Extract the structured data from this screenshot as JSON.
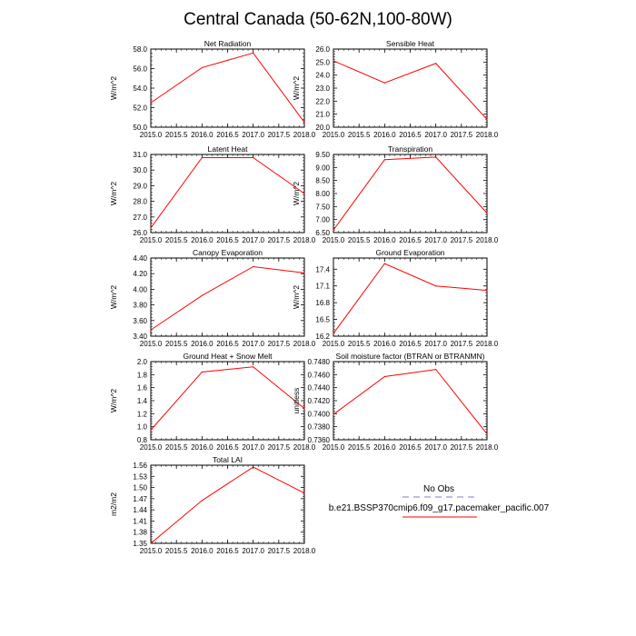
{
  "figure": {
    "title": "Central Canada (50-62N,100-80W)"
  },
  "colors": {
    "series": "#ff0000",
    "obs": "#a8a8d8",
    "axis": "#000000"
  },
  "legend": {
    "entries": [
      {
        "label": "No Obs",
        "style": "dashed",
        "color": "#a8a8d8"
      },
      {
        "label": "b.e21.BSSP370cmip6.f09_g17.pacemaker_pacific.007",
        "style": "solid",
        "color": "#ff0000"
      }
    ]
  },
  "chart_data": [
    {
      "type": "line",
      "title": "Net Radiation",
      "ylabel": "W/m^2",
      "x": [
        2015,
        2016,
        2017,
        2018
      ],
      "values": [
        52.5,
        56.1,
        57.6,
        50.5
      ],
      "xlim": [
        2015,
        2018
      ],
      "ylim": [
        50,
        58
      ],
      "xticks": [
        2015,
        2015.5,
        2016,
        2016.5,
        2017,
        2017.5,
        2018
      ],
      "xtick_labels": [
        "2015.0",
        "2015.5",
        "2016.0",
        "2016.5",
        "2017.0",
        "2017.5",
        "2018.0"
      ],
      "yticks": [
        50,
        52,
        54,
        56,
        58
      ],
      "ytick_labels": [
        "50.0",
        "52.0",
        "54.0",
        "56.0",
        "58.0"
      ]
    },
    {
      "type": "line",
      "title": "Sensible Heat",
      "ylabel": "W/m^2",
      "x": [
        2015,
        2016,
        2017,
        2018
      ],
      "values": [
        25.1,
        23.4,
        24.9,
        20.6
      ],
      "xlim": [
        2015,
        2018
      ],
      "ylim": [
        20,
        26
      ],
      "xticks": [
        2015,
        2015.5,
        2016,
        2016.5,
        2017,
        2017.5,
        2018
      ],
      "xtick_labels": [
        "2015.0",
        "2015.5",
        "2016.0",
        "2016.5",
        "2017.0",
        "2017.5",
        "2018.0"
      ],
      "yticks": [
        20,
        21,
        22,
        23,
        24,
        25,
        26
      ],
      "ytick_labels": [
        "20.0",
        "21.0",
        "22.0",
        "23.0",
        "24.0",
        "25.0",
        "26.0"
      ]
    },
    {
      "type": "line",
      "title": "Latent Heat",
      "ylabel": "W/m^2",
      "x": [
        2015,
        2016,
        2017,
        2018
      ],
      "values": [
        26.3,
        30.8,
        30.8,
        28.5
      ],
      "xlim": [
        2015,
        2018
      ],
      "ylim": [
        26,
        31
      ],
      "xticks": [
        2015,
        2015.5,
        2016,
        2016.5,
        2017,
        2017.5,
        2018
      ],
      "xtick_labels": [
        "2015.0",
        "2015.5",
        "2016.0",
        "2016.5",
        "2017.0",
        "2017.5",
        "2018.0"
      ],
      "yticks": [
        26,
        27,
        28,
        29,
        30,
        31
      ],
      "ytick_labels": [
        "26.0",
        "27.0",
        "28.0",
        "29.0",
        "30.0",
        "31.0"
      ]
    },
    {
      "type": "line",
      "title": "Transpiration",
      "ylabel": "W/m^2",
      "x": [
        2015,
        2016,
        2017,
        2018
      ],
      "values": [
        6.6,
        9.3,
        9.4,
        7.25
      ],
      "xlim": [
        2015,
        2018
      ],
      "ylim": [
        6.5,
        9.5
      ],
      "xticks": [
        2015,
        2015.5,
        2016,
        2016.5,
        2017,
        2017.5,
        2018
      ],
      "xtick_labels": [
        "2015.0",
        "2015.5",
        "2016.0",
        "2016.5",
        "2017.0",
        "2017.5",
        "2018.0"
      ],
      "yticks": [
        6.5,
        7.0,
        7.5,
        8.0,
        8.5,
        9.0,
        9.5
      ],
      "ytick_labels": [
        "6.50",
        "7.00",
        "7.50",
        "8.00",
        "8.50",
        "9.00",
        "9.50"
      ]
    },
    {
      "type": "line",
      "title": "Canopy Evaporation",
      "ylabel": "W/m^2",
      "x": [
        2015,
        2016,
        2017,
        2018
      ],
      "values": [
        3.48,
        3.92,
        4.29,
        4.21
      ],
      "xlim": [
        2015,
        2018
      ],
      "ylim": [
        3.4,
        4.4
      ],
      "xticks": [
        2015,
        2015.5,
        2016,
        2016.5,
        2017,
        2017.5,
        2018
      ],
      "xtick_labels": [
        "2015.0",
        "2015.5",
        "2016.0",
        "2016.5",
        "2017.0",
        "2017.5",
        "2018.0"
      ],
      "yticks": [
        3.4,
        3.6,
        3.8,
        4.0,
        4.2,
        4.4
      ],
      "ytick_labels": [
        "3.40",
        "3.60",
        "3.80",
        "4.00",
        "4.20",
        "4.40"
      ]
    },
    {
      "type": "line",
      "title": "Ground Evaporation",
      "ylabel": "W/m^2",
      "x": [
        2015,
        2016,
        2017,
        2018
      ],
      "values": [
        16.25,
        17.5,
        17.1,
        17.02
      ],
      "xlim": [
        2015,
        2018
      ],
      "ylim": [
        16.2,
        17.6
      ],
      "xticks": [
        2015,
        2015.5,
        2016,
        2016.5,
        2017,
        2017.5,
        2018
      ],
      "xtick_labels": [
        "2015.0",
        "2015.5",
        "2016.0",
        "2016.5",
        "2017.0",
        "2017.5",
        "2018.0"
      ],
      "yticks": [
        16.2,
        16.5,
        16.8,
        17.1,
        17.4
      ],
      "ytick_labels": [
        "16.2",
        "16.5",
        "16.8",
        "17.1",
        "17.4"
      ]
    },
    {
      "type": "line",
      "title": "Ground Heat + Snow Melt",
      "ylabel": "W/m^2",
      "x": [
        2015,
        2016,
        2017,
        2018
      ],
      "values": [
        0.95,
        1.84,
        1.92,
        1.28
      ],
      "xlim": [
        2015,
        2018
      ],
      "ylim": [
        0.8,
        2.0
      ],
      "xticks": [
        2015,
        2015.5,
        2016,
        2016.5,
        2017,
        2017.5,
        2018
      ],
      "xtick_labels": [
        "2015.0",
        "2015.5",
        "2016.0",
        "2016.5",
        "2017.0",
        "2017.5",
        "2018.0"
      ],
      "yticks": [
        0.8,
        1.0,
        1.2,
        1.4,
        1.6,
        1.8,
        2.0
      ],
      "ytick_labels": [
        "0.8",
        "1.0",
        "1.2",
        "1.4",
        "1.6",
        "1.8",
        "2.0"
      ]
    },
    {
      "type": "line",
      "title": "Soil moisture factor (BTRAN or BTRANMN)",
      "ylabel": "unitless",
      "x": [
        2015,
        2016,
        2017,
        2018
      ],
      "values": [
        0.7399,
        0.7457,
        0.7468,
        0.7369
      ],
      "xlim": [
        2015,
        2018
      ],
      "ylim": [
        0.736,
        0.748
      ],
      "xticks": [
        2015,
        2015.5,
        2016,
        2016.5,
        2017,
        2017.5,
        2018
      ],
      "xtick_labels": [
        "2015.0",
        "2015.5",
        "2016.0",
        "2016.5",
        "2017.0",
        "2017.5",
        "2018.0"
      ],
      "yticks": [
        0.736,
        0.738,
        0.74,
        0.742,
        0.744,
        0.746,
        0.748
      ],
      "ytick_labels": [
        "0.7360",
        "0.7380",
        "0.7400",
        "0.7420",
        "0.7440",
        "0.7460",
        "0.7480"
      ]
    },
    {
      "type": "line",
      "title": "Total LAI",
      "ylabel": "m2/m2",
      "x": [
        2015,
        2016,
        2017,
        2018
      ],
      "values": [
        1.35,
        1.465,
        1.555,
        1.485
      ],
      "xlim": [
        2015,
        2018
      ],
      "ylim": [
        1.35,
        1.56
      ],
      "xticks": [
        2015,
        2015.5,
        2016,
        2016.5,
        2017,
        2017.5,
        2018
      ],
      "xtick_labels": [
        "2015.0",
        "2015.5",
        "2016.0",
        "2016.5",
        "2017.0",
        "2017.5",
        "2018.0"
      ],
      "yticks": [
        1.35,
        1.38,
        1.41,
        1.44,
        1.47,
        1.5,
        1.53,
        1.56
      ],
      "ytick_labels": [
        "1.35",
        "1.38",
        "1.41",
        "1.44",
        "1.47",
        "1.50",
        "1.53",
        "1.56"
      ]
    }
  ]
}
